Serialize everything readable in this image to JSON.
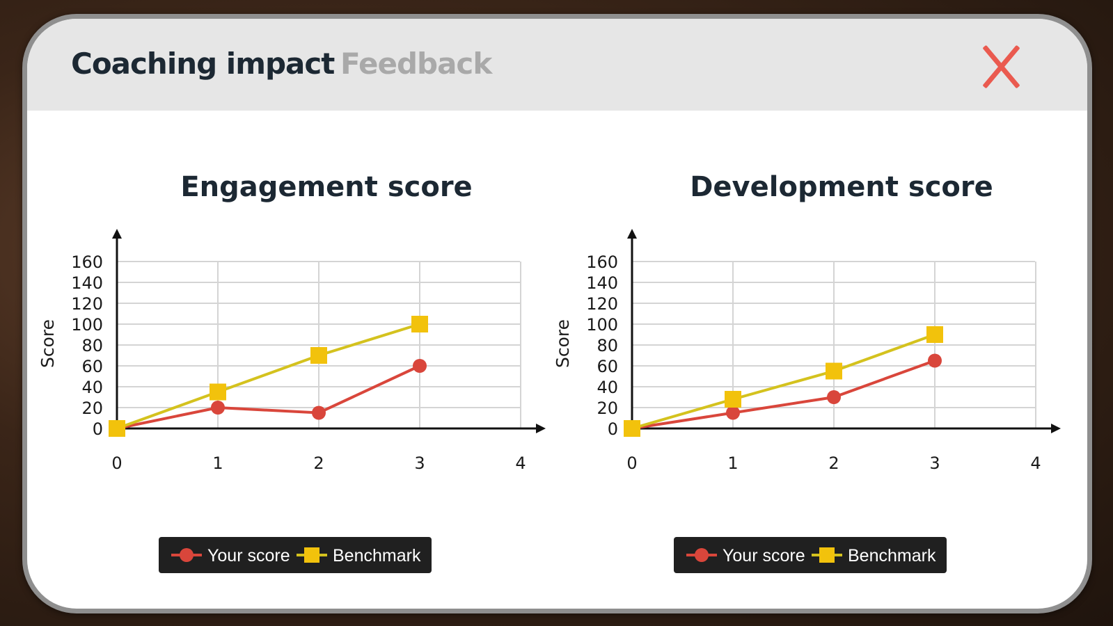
{
  "tabs": [
    {
      "label": "Coaching impact",
      "active": true
    },
    {
      "label": "Feedback",
      "active": false
    }
  ],
  "close_icon": "close-icon",
  "colors": {
    "your_score": "#d9463b",
    "benchmark": "#f2c20c",
    "benchmark_line": "#d4c21e",
    "legend_bg": "#202020",
    "close": "#ea5a4f"
  },
  "chart_data": [
    {
      "type": "line",
      "title": "Engagement score",
      "xlabel": "",
      "ylabel": "Score",
      "x": [
        0,
        1,
        2,
        3
      ],
      "xticks": [
        0,
        1,
        2,
        3,
        4
      ],
      "yticks": [
        0,
        20,
        40,
        60,
        80,
        100,
        120,
        140,
        160
      ],
      "xlim": [
        0,
        4
      ],
      "ylim": [
        0,
        160
      ],
      "grid": true,
      "legend": "bottom-center",
      "series": [
        {
          "name": "Your score",
          "marker": "circle",
          "values": [
            0,
            20,
            15,
            60
          ]
        },
        {
          "name": "Benchmark",
          "marker": "square",
          "values": [
            0,
            35,
            70,
            100
          ]
        }
      ]
    },
    {
      "type": "line",
      "title": "Development score",
      "xlabel": "",
      "ylabel": "Score",
      "x": [
        0,
        1,
        2,
        3
      ],
      "xticks": [
        0,
        1,
        2,
        3,
        4
      ],
      "yticks": [
        0,
        20,
        40,
        60,
        80,
        100,
        120,
        140,
        160
      ],
      "xlim": [
        0,
        4
      ],
      "ylim": [
        0,
        160
      ],
      "grid": true,
      "legend": "bottom-center",
      "series": [
        {
          "name": "Your score",
          "marker": "circle",
          "values": [
            0,
            15,
            30,
            65
          ]
        },
        {
          "name": "Benchmark",
          "marker": "square",
          "values": [
            0,
            28,
            55,
            90
          ]
        }
      ]
    }
  ]
}
